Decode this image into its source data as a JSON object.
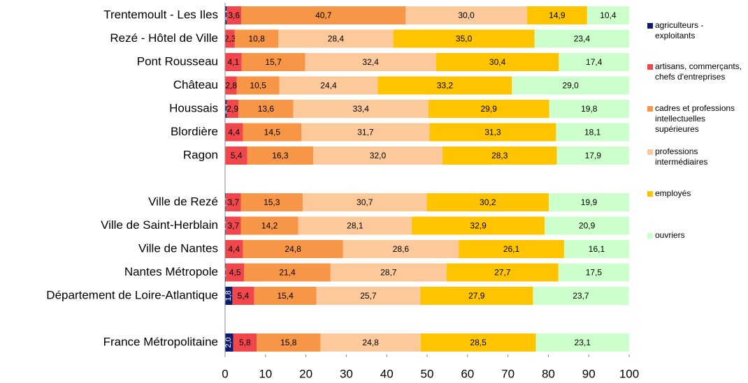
{
  "chart_data": {
    "type": "stacked_bar_horizontal",
    "categories": [
      "Trentemoult - Les Iles",
      "Rezé - Hôtel de Ville",
      "Pont Rousseau",
      "Château",
      "Houssais",
      "Blordière",
      "Ragon",
      null,
      "Ville de Rezé",
      "Ville de Saint-Herblain",
      "Ville de Nantes",
      "Nantes Métropole",
      "Département de Loire-Atlantique",
      null,
      "France Métropolitaine"
    ],
    "series": [
      {
        "name": "agriculteurs - exploitants",
        "color": "#0c1a70",
        "values": [
          0.4,
          0.1,
          0.0,
          0.1,
          0.4,
          0.0,
          0.1,
          null,
          0.2,
          0.2,
          0.0,
          0.2,
          1.8,
          null,
          2.0
        ],
        "value_labels": [
          "0,4",
          "0,1",
          "0,0",
          "0,1",
          "0,4",
          "0,0",
          "0,1",
          null,
          "0,2",
          "0,2",
          "0,0",
          "0,2",
          "1,8",
          null,
          "2,0"
        ]
      },
      {
        "name": "artisans, commerçants, chefs d'entreprises",
        "color": "#f0464c",
        "values": [
          3.6,
          2.3,
          4.1,
          2.8,
          2.9,
          4.4,
          5.4,
          null,
          3.7,
          3.7,
          4.4,
          4.5,
          5.4,
          null,
          5.8
        ],
        "value_labels": [
          "3,6",
          "2,3",
          "4,1",
          "2,8",
          "2,9",
          "4,4",
          "5,4",
          null,
          "3,7",
          "3,7",
          "4,4",
          "4,5",
          "5,4",
          null,
          "5,8"
        ]
      },
      {
        "name": "cadres et professions intellectuelles supérieures",
        "color": "#f79646",
        "values": [
          40.7,
          10.8,
          15.7,
          10.5,
          13.6,
          14.5,
          16.3,
          null,
          15.3,
          14.2,
          24.8,
          21.4,
          15.4,
          null,
          15.8
        ],
        "value_labels": [
          "40,7",
          "10,8",
          "15,7",
          "10,5",
          "13,6",
          "14,5",
          "16,3",
          null,
          "15,3",
          "14,2",
          "24,8",
          "21,4",
          "15,4",
          null,
          "15,8"
        ]
      },
      {
        "name": "professions intermédiaires",
        "color": "#fbc99a",
        "values": [
          30.0,
          28.4,
          32.4,
          24.4,
          33.4,
          31.7,
          32.0,
          null,
          30.7,
          28.1,
          28.6,
          28.7,
          25.7,
          null,
          24.8
        ],
        "value_labels": [
          "30,0",
          "28,4",
          "32,4",
          "24,4",
          "33,4",
          "31,7",
          "32,0",
          null,
          "30,7",
          "28,1",
          "28,6",
          "28,7",
          "25,7",
          null,
          "24,8"
        ]
      },
      {
        "name": "employés",
        "color": "#ffc400",
        "values": [
          14.9,
          35.0,
          30.4,
          33.2,
          29.9,
          31.3,
          28.3,
          null,
          30.2,
          32.9,
          26.1,
          27.7,
          27.9,
          null,
          28.5
        ],
        "value_labels": [
          "14,9",
          "35,0",
          "30,4",
          "33,2",
          "29,9",
          "31,3",
          "28,3",
          null,
          "30,2",
          "32,9",
          "26,1",
          "27,7",
          "27,9",
          null,
          "28,5"
        ]
      },
      {
        "name": "ouvriers",
        "color": "#ccffcc",
        "values": [
          10.4,
          23.4,
          17.4,
          29.0,
          19.8,
          18.1,
          17.9,
          null,
          19.9,
          20.9,
          16.1,
          17.5,
          23.7,
          null,
          23.1
        ],
        "value_labels": [
          "10,4",
          "23,4",
          "17,4",
          "29,0",
          "19,8",
          "18,1",
          "17,9",
          null,
          "19,9",
          "20,9",
          "16,1",
          "17,5",
          "23,7",
          null,
          "23,1"
        ]
      }
    ],
    "xlim": [
      0,
      100
    ],
    "xticks": [
      0,
      10,
      20,
      30,
      40,
      50,
      60,
      70,
      80,
      90,
      100
    ],
    "grid": false,
    "legend": "right"
  }
}
